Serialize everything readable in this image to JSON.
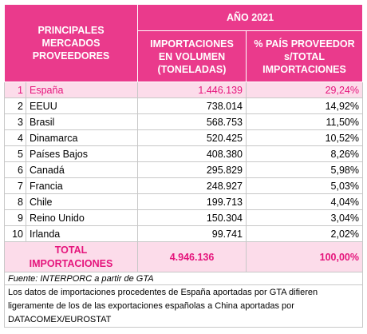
{
  "header": {
    "markets": "PRINCIPALES\nMERCADOS\nPROVEEDORES",
    "year": "AÑO 2021",
    "volume": "IMPORTACIONES\nEN VOLUMEN\n(TONELADAS)",
    "percent": "% PAÍS PROVEEDOR\ns/TOTAL\nIMPORTACIONES"
  },
  "table": {
    "rows": [
      [
        "1",
        "España",
        "1.446.139",
        "29,24%"
      ],
      [
        "2",
        "EEUU",
        "738.014",
        "14,92%"
      ],
      [
        "3",
        "Brasil",
        "568.753",
        "11,50%"
      ],
      [
        "4",
        "Dinamarca",
        "520.425",
        "10,52%"
      ],
      [
        "5",
        "Países Bajos",
        "408.380",
        "8,26%"
      ],
      [
        "6",
        "Canadá",
        "295.829",
        "5,98%"
      ],
      [
        "7",
        "Francia",
        "248.927",
        "5,03%"
      ],
      [
        "8",
        "Chile",
        "199.713",
        "4,04%"
      ],
      [
        "9",
        "Reino Unido",
        "150.304",
        "3,04%"
      ],
      [
        "10",
        "Irlanda",
        "99.741",
        "2,02%"
      ]
    ]
  },
  "total": {
    "label": "TOTAL\nIMPORTACIONES",
    "volume": "4.946.136",
    "percent": "100,00%"
  },
  "source": "Fuente: INTERPORC a partir de GTA",
  "note": "Los datos de importaciones procedentes de España aportadas por GTA difieren ligeramente de los de las exportaciones españolas a China aportadas por DATACOMEX/EUROSTAT"
}
